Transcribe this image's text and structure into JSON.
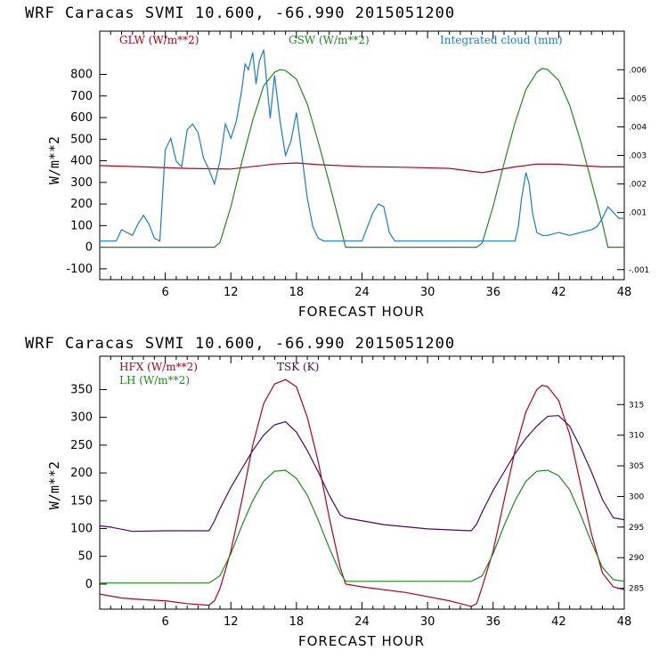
{
  "chart_data": [
    {
      "type": "line",
      "title": "WRF  Caracas SVMI  10.600, -66.990  2015051200",
      "xlabel": "FORECAST HOUR",
      "ylabel": "W/m**2",
      "xlim": [
        0,
        48
      ],
      "ylim": [
        -150,
        1000
      ],
      "xticks": [
        6,
        12,
        18,
        24,
        30,
        36,
        42,
        48
      ],
      "xtick_labels": [
        "6",
        "12",
        "18",
        "24",
        "30",
        "36",
        "42",
        "48"
      ],
      "yticks": [
        -100,
        0,
        100,
        200,
        300,
        400,
        500,
        600,
        700,
        800
      ],
      "ytick_labels": [
        "-100",
        "0",
        "100",
        "200",
        "300",
        "400",
        "500",
        "600",
        "700",
        "800"
      ],
      "y2lim": [
        -0.00135,
        0.00735
      ],
      "y2ticks": [
        -0.001,
        0.001,
        0.002,
        0.003,
        0.004,
        0.005,
        0.006
      ],
      "y2tick_labels": [
        "-.001",
        ".001",
        ".002",
        ".003",
        ".004",
        ".005",
        ".006"
      ],
      "legend": "top",
      "series": [
        {
          "name": "GLW (W/m**2)",
          "color": "#b3001b",
          "axis": "left",
          "x": [
            0,
            4,
            8,
            12,
            16,
            18,
            20,
            24,
            28,
            32,
            35,
            38,
            40,
            42,
            46,
            48
          ],
          "values": [
            378,
            372,
            365,
            362,
            385,
            390,
            382,
            373,
            370,
            365,
            345,
            372,
            385,
            384,
            372,
            372
          ]
        },
        {
          "name": "GSW (W/m**2)",
          "color": "#1e8a1e",
          "axis": "left",
          "x": [
            0,
            10.5,
            11,
            12,
            13,
            14,
            15,
            16,
            16.5,
            17,
            18,
            19,
            20,
            21,
            22,
            22.5,
            34.5,
            35,
            36,
            37,
            38,
            39,
            40,
            40.5,
            41,
            42,
            43,
            44,
            45,
            46,
            46.5,
            48
          ],
          "values": [
            0,
            0,
            22,
            188,
            395,
            588,
            747,
            810,
            822,
            818,
            778,
            662,
            487,
            298,
            100,
            0,
            0,
            20,
            190,
            388,
            576,
            730,
            810,
            828,
            822,
            772,
            658,
            492,
            302,
            110,
            0,
            0
          ]
        },
        {
          "name": "Integrated cloud (mm)",
          "color": "#1a7ad4",
          "axis": "right",
          "x": [
            0,
            1.5,
            2,
            2.5,
            3,
            3.5,
            4,
            4.5,
            5,
            5.5,
            6,
            6.5,
            7,
            7.5,
            8,
            8.5,
            9,
            9.5,
            10,
            10.5,
            11,
            11.5,
            12,
            12.5,
            13,
            13.3,
            13.6,
            14,
            14.3,
            14.6,
            15,
            15.3,
            15.6,
            16,
            16.5,
            17,
            17.5,
            18,
            18.5,
            19,
            19.5,
            20,
            20.5,
            21,
            21.5,
            22,
            22.5,
            24,
            24.5,
            25,
            25.5,
            26,
            26.5,
            27,
            28,
            30,
            34,
            37,
            38,
            38.3,
            38.6,
            39,
            39.3,
            39.6,
            40,
            40.5,
            41,
            42,
            43,
            44,
            45,
            45.5,
            46,
            46.5,
            47,
            47.5,
            48
          ],
          "values": [
            0,
            0,
            0.0004,
            0.0003,
            0.0002,
            0.0006,
            0.0009,
            0.0006,
            0.0001,
            0,
            0.0032,
            0.0036,
            0.0028,
            0.0026,
            0.0039,
            0.0041,
            0.0038,
            0.0029,
            0.0025,
            0.002,
            0.0028,
            0.0041,
            0.0036,
            0.0042,
            0.0053,
            0.0062,
            0.006,
            0.0066,
            0.0055,
            0.0063,
            0.0067,
            0.0055,
            0.0043,
            0.0058,
            0.0042,
            0.003,
            0.0035,
            0.0045,
            0.003,
            0.0015,
            0.0005,
            0.0001,
            0,
            0,
            0,
            0,
            0,
            0,
            0.0005,
            0.001,
            0.0013,
            0.0012,
            0.0003,
            0,
            0,
            0,
            0,
            0,
            0,
            0.0005,
            0.0015,
            0.0024,
            0.002,
            0.001,
            0.0003,
            0.0002,
            0.0002,
            0.0003,
            0.0002,
            0.0003,
            0.0004,
            0.0005,
            0.0008,
            0.0012,
            0.001,
            0.0008,
            0.0008
          ]
        }
      ]
    },
    {
      "type": "line",
      "title": "WRF  Caracas SVMI  10.600, -66.990  2015051200",
      "xlabel": "FORECAST HOUR",
      "ylabel": "W/m**2",
      "xlim": [
        0,
        48
      ],
      "ylim": [
        -45,
        410
      ],
      "xticks": [
        6,
        12,
        18,
        24,
        30,
        36,
        42,
        48
      ],
      "xtick_labels": [
        "6",
        "12",
        "18",
        "24",
        "30",
        "36",
        "42",
        "48"
      ],
      "yticks": [
        0,
        50,
        100,
        150,
        200,
        250,
        300,
        350
      ],
      "ytick_labels": [
        "0",
        "50",
        "100",
        "150",
        "200",
        "250",
        "300",
        "350"
      ],
      "y2lim": [
        281.6,
        322.9
      ],
      "y2ticks": [
        285,
        290,
        295,
        300,
        305,
        310,
        315
      ],
      "y2tick_labels": [
        "285",
        "290",
        "295",
        "300",
        "305",
        "310",
        "315"
      ],
      "legend": "top",
      "series": [
        {
          "name": "HFX (W/m**2)",
          "color": "#b3001b",
          "axis": "left",
          "x": [
            0,
            2,
            4,
            6,
            8,
            10,
            10.5,
            11,
            11.5,
            12,
            13,
            14,
            15,
            16,
            17,
            18,
            19,
            20,
            21,
            22,
            22.5,
            24,
            28,
            32,
            34,
            34.5,
            35,
            36,
            37,
            38,
            39,
            40,
            40.5,
            41,
            42,
            43,
            44,
            45,
            46,
            47,
            48
          ],
          "values": [
            -18,
            -25,
            -28,
            -30,
            -35,
            -38,
            -30,
            -8,
            25,
            60,
            150,
            250,
            325,
            360,
            368,
            355,
            300,
            220,
            120,
            30,
            0,
            -5,
            -15,
            -30,
            -40,
            -35,
            -5,
            60,
            150,
            240,
            310,
            350,
            358,
            355,
            330,
            270,
            180,
            90,
            20,
            -5,
            -10
          ]
        },
        {
          "name": "LH (W/m**2)",
          "color": "#1e8a1e",
          "axis": "left",
          "x": [
            0,
            10,
            11,
            12,
            13,
            14,
            15,
            16,
            17,
            18,
            19,
            20,
            21,
            22,
            22.5,
            34,
            35,
            36,
            37,
            38,
            39,
            40,
            41,
            42,
            43,
            44,
            45,
            46,
            47,
            48
          ],
          "values": [
            2,
            2,
            15,
            55,
            105,
            150,
            185,
            203,
            205,
            190,
            160,
            115,
            65,
            20,
            5,
            5,
            15,
            55,
            105,
            150,
            185,
            203,
            205,
            195,
            170,
            125,
            75,
            30,
            8,
            5
          ]
        },
        {
          "name": "TSK (K)",
          "color": "#4b0a5a",
          "axis": "right",
          "x": [
            0,
            1,
            3,
            6,
            8,
            10,
            10.5,
            11,
            12,
            13,
            14,
            15,
            16,
            17,
            18,
            19,
            20,
            21,
            22,
            22.5,
            26,
            30,
            34,
            34.5,
            35,
            36,
            37,
            38,
            39,
            40,
            41,
            42,
            43,
            44,
            45,
            46,
            47,
            48
          ],
          "values": [
            295.2,
            295.0,
            294.3,
            294.4,
            294.4,
            294.4,
            296,
            298,
            301.5,
            304.5,
            307.5,
            310,
            311.7,
            312.2,
            310.5,
            307.5,
            304,
            300.2,
            297,
            296.5,
            295.4,
            294.7,
            294.4,
            295.5,
            297.5,
            301,
            304,
            307,
            309.5,
            311.5,
            313.1,
            313.2,
            311.5,
            308,
            304,
            299.5,
            296.5,
            296.2
          ]
        }
      ]
    }
  ]
}
